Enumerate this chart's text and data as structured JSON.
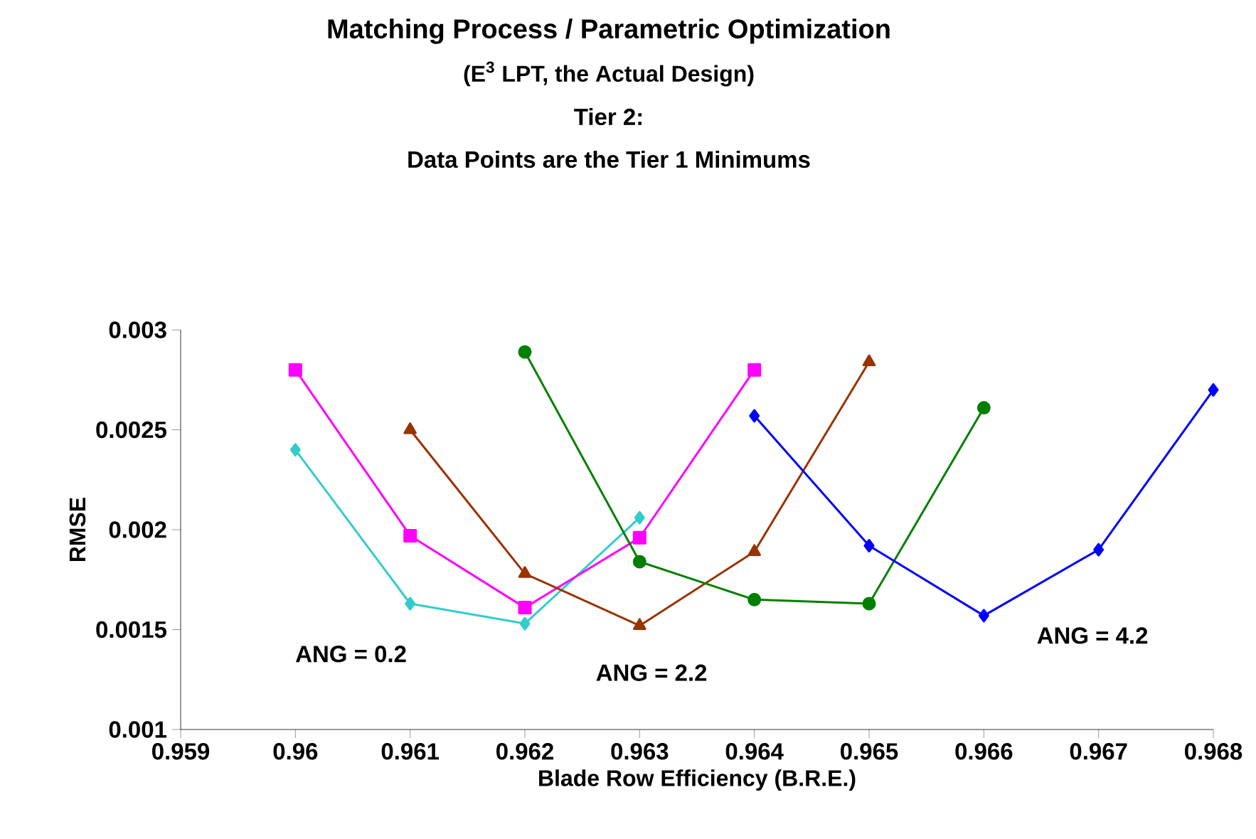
{
  "chart_data": {
    "type": "line",
    "title": "Matching Process / Parametric Optimization",
    "subtitle": "(E$^{3}$ LPT, the Actual Design)",
    "xlabel": "Blade Row Efficiency (B.R.E.)",
    "ylabel": "RMSE",
    "x": [
      0.96,
      0.961,
      0.962,
      0.963,
      0.964,
      0.965,
      0.966,
      0.967,
      0.968
    ],
    "series": [
      {
        "color": "#33cccc",
        "marker": "diamond",
        "values": [
          0.0024,
          0.00163,
          0.00153,
          0.00206,
          null,
          null,
          null,
          null,
          null
        ]
      },
      {
        "color": "#ff00ff",
        "marker": "square",
        "values": [
          0.0028,
          0.00197,
          0.00161,
          0.00196,
          0.0028,
          null,
          null,
          null,
          null
        ]
      },
      {
        "color": "#993300",
        "marker": "triangle",
        "values": [
          null,
          0.0025,
          0.00178,
          0.00152,
          0.00189,
          0.00284,
          null,
          null,
          null
        ]
      },
      {
        "color": "#008000",
        "marker": "circle",
        "values": [
          null,
          null,
          0.00289,
          0.00184,
          0.00165,
          0.00163,
          0.00261,
          null,
          null
        ]
      },
      {
        "color": "#0000ff",
        "marker": "diamond",
        "values": [
          null,
          null,
          null,
          null,
          0.00257,
          0.00192,
          0.00157,
          0.0019,
          0.0027
        ]
      }
    ],
    "xlim": [
      0.959,
      0.968
    ],
    "xticks": [
      0.959,
      0.96,
      0.961,
      0.962,
      0.963,
      0.964,
      0.965,
      0.966,
      0.967,
      0.968
    ],
    "ylim": [
      0.001,
      0.003
    ],
    "yticks": [
      0.001,
      0.0015,
      0.002,
      0.0025,
      0.003
    ],
    "line_style": "solid",
    "annotations": [
      "Tier 2:",
      "Data Points are the Tier 1 Minimums",
      "ANG = 0.2",
      "ANG = 2.2",
      "ANG = 4.2"
    ]
  }
}
